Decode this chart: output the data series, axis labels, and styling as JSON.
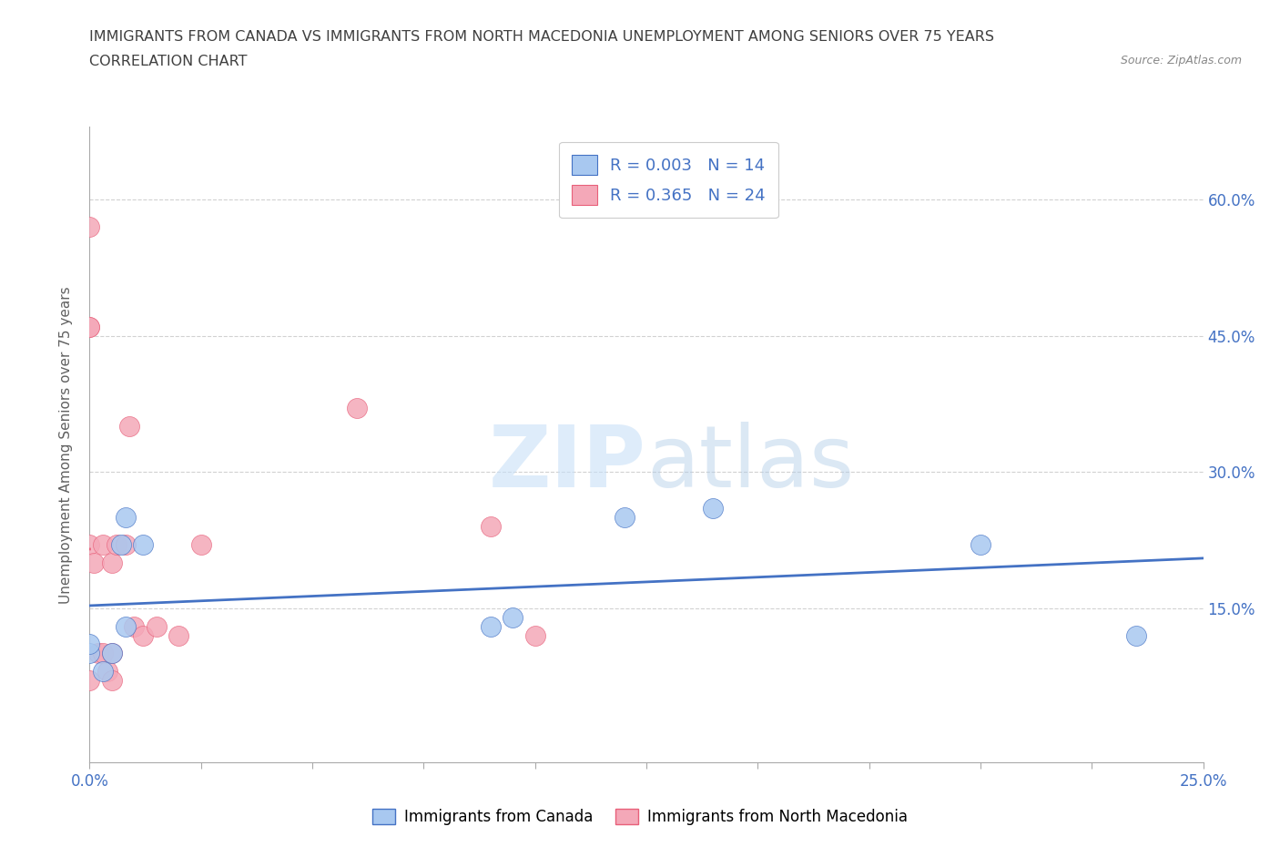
{
  "title_line1": "IMMIGRANTS FROM CANADA VS IMMIGRANTS FROM NORTH MACEDONIA UNEMPLOYMENT AMONG SENIORS OVER 75 YEARS",
  "title_line2": "CORRELATION CHART",
  "source": "Source: ZipAtlas.com",
  "ylabel": "Unemployment Among Seniors over 75 years",
  "xlim": [
    0,
    0.25
  ],
  "ylim": [
    -0.02,
    0.68
  ],
  "xticks": [
    0.0,
    0.025,
    0.05,
    0.075,
    0.1,
    0.125,
    0.15,
    0.175,
    0.2,
    0.225,
    0.25
  ],
  "yticks": [
    0.15,
    0.3,
    0.45,
    0.6
  ],
  "xticklabels_show": {
    "0.0": "0.0%",
    "0.25": "25.0%"
  },
  "yticklabels": [
    "15.0%",
    "30.0%",
    "45.0%",
    "60.0%"
  ],
  "watermark_zip": "ZIP",
  "watermark_atlas": "atlas",
  "canada_color": "#a8c8f0",
  "canada_color_line": "#4472c4",
  "macedonia_color": "#f4a8b8",
  "macedonia_color_line": "#e8607a",
  "canada_R": "0.003",
  "canada_N": "14",
  "macedonia_R": "0.365",
  "macedonia_N": "24",
  "canada_points_x": [
    0.0,
    0.0,
    0.003,
    0.005,
    0.007,
    0.008,
    0.008,
    0.012,
    0.09,
    0.095,
    0.12,
    0.14,
    0.2,
    0.235
  ],
  "canada_points_y": [
    0.1,
    0.11,
    0.08,
    0.1,
    0.22,
    0.25,
    0.13,
    0.22,
    0.13,
    0.14,
    0.25,
    0.26,
    0.22,
    0.12
  ],
  "macedonia_points_x": [
    0.0,
    0.0,
    0.0,
    0.0,
    0.0,
    0.001,
    0.002,
    0.003,
    0.003,
    0.004,
    0.005,
    0.005,
    0.005,
    0.006,
    0.008,
    0.009,
    0.01,
    0.012,
    0.015,
    0.02,
    0.025,
    0.06,
    0.09,
    0.1
  ],
  "macedonia_points_y": [
    0.57,
    0.46,
    0.46,
    0.22,
    0.07,
    0.2,
    0.1,
    0.22,
    0.1,
    0.08,
    0.1,
    0.2,
    0.07,
    0.22,
    0.22,
    0.35,
    0.13,
    0.12,
    0.13,
    0.12,
    0.22,
    0.37,
    0.24,
    0.12
  ],
  "background_color": "#ffffff",
  "grid_color": "#cccccc",
  "title_color": "#404040",
  "axis_label_color": "#606060",
  "tick_label_color": "#4472c4",
  "legend_R_N_color": "#4472c4",
  "figsize": [
    14.06,
    9.3
  ],
  "dpi": 100
}
